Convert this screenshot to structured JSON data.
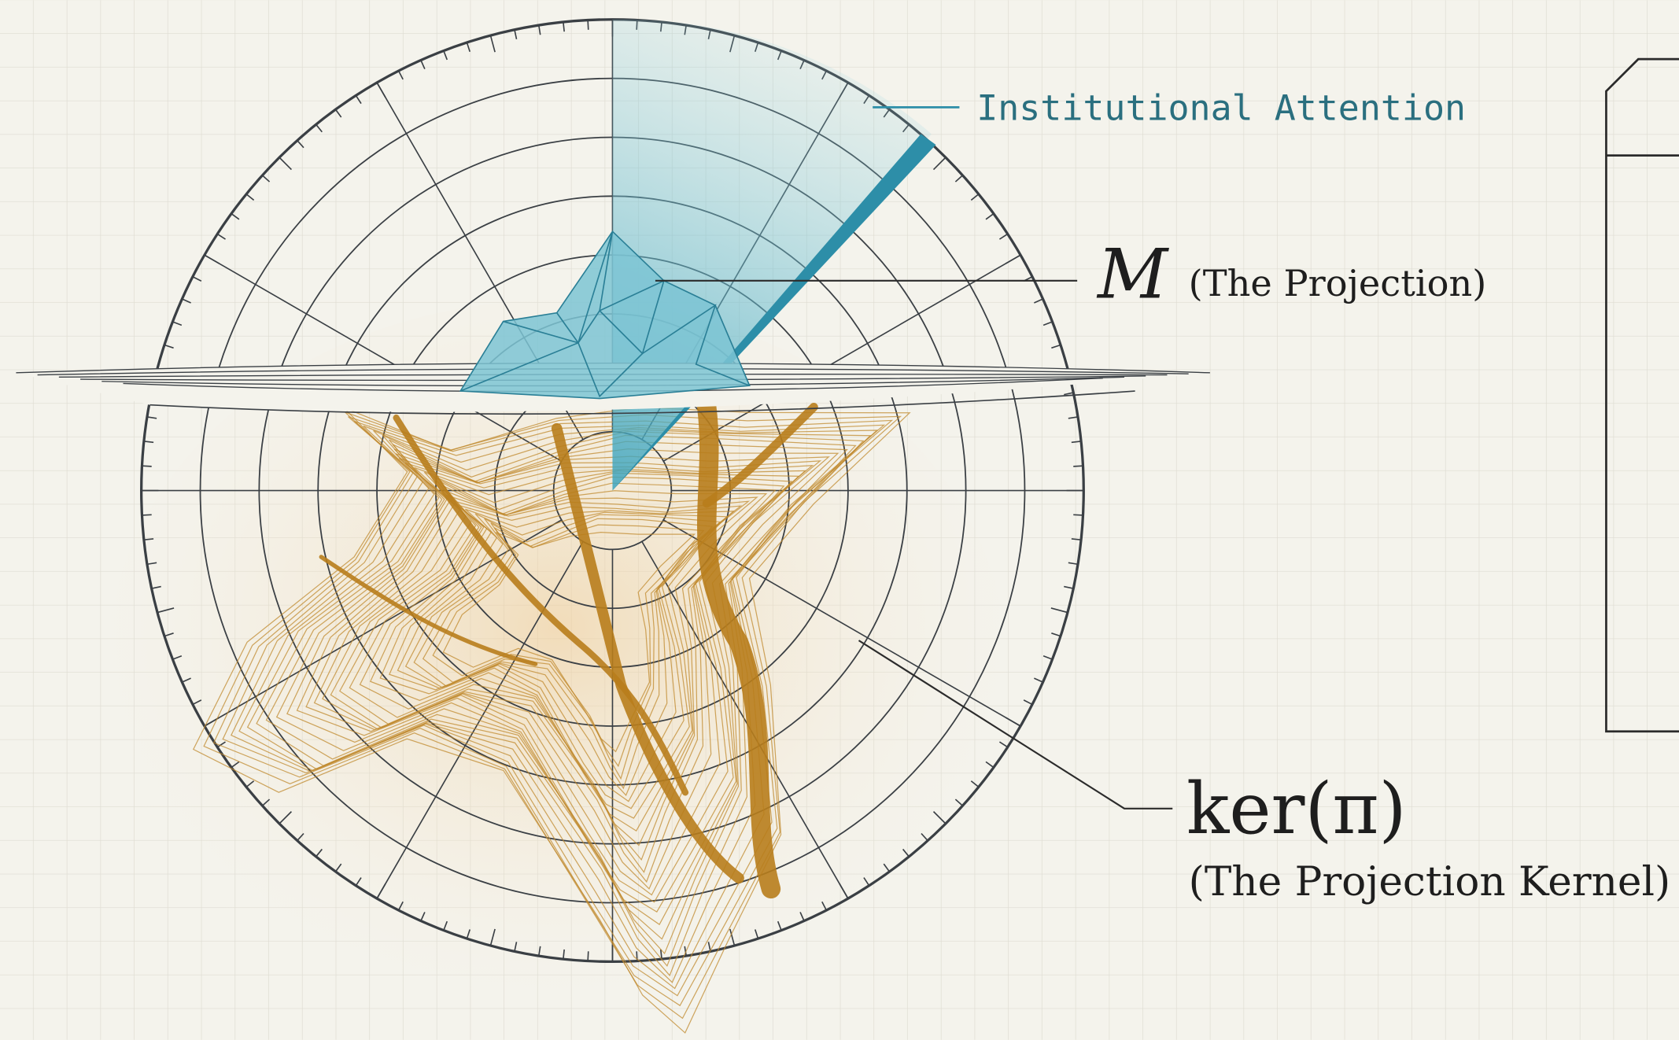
{
  "labels": {
    "attention": "Institutional Attention",
    "projection_symbol": "M",
    "projection": "(The Projection)",
    "kernel_symbol": "ker(π)",
    "kernel": "(The Projection Kernel)"
  }
}
